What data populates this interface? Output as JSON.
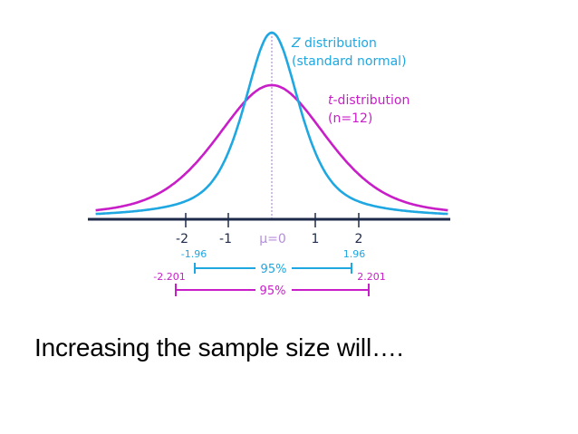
{
  "figure": {
    "z_label": {
      "italic": "Z",
      "rest": " distribution",
      "line2": "(standard normal)"
    },
    "t_label": {
      "italic": "t",
      "rest": "-distribution",
      "line2": "(n=12)"
    },
    "axis_ticks": [
      "-2",
      "-1",
      "μ=0",
      "1",
      "2"
    ],
    "z_interval": {
      "left": "-1.96",
      "right": "1.96",
      "label": "95%"
    },
    "t_interval": {
      "left": "-2.201",
      "right": "2.201",
      "label": "95%"
    },
    "colors": {
      "z": "#1ea7e1",
      "t": "#c81ec8",
      "axis": "#1e2a4a",
      "mean": "#b48cdc"
    }
  },
  "caption": "Increasing the sample size will…."
}
